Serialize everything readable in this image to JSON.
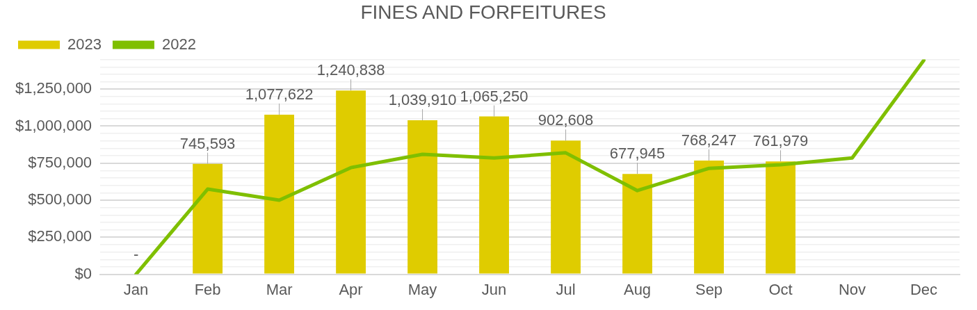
{
  "chart_data": {
    "type": "bar",
    "title": "FINES AND FORFEITURES",
    "categories": [
      "Jan",
      "Feb",
      "Mar",
      "Apr",
      "May",
      "Jun",
      "Jul",
      "Aug",
      "Sep",
      "Oct",
      "Nov",
      "Dec"
    ],
    "series": [
      {
        "name": "2023",
        "color": "#dfcc00",
        "values": [
          0,
          745593,
          1077622,
          1240838,
          1039910,
          1065250,
          902608,
          677945,
          768247,
          761979,
          null,
          null
        ],
        "value_labels": [
          "-",
          "745,593",
          "1,077,622",
          "1,240,838",
          "1,039,910",
          "1,065,250",
          "902,608",
          "677,945",
          "768,247",
          "761,979",
          null,
          null
        ]
      },
      {
        "name": "2022",
        "type": "line",
        "color": "#7fbf00",
        "values": [
          0,
          575000,
          500000,
          720000,
          810000,
          785000,
          820000,
          565000,
          715000,
          740000,
          785000,
          1445000
        ]
      }
    ],
    "ylim": [
      0,
      1450000
    ],
    "yticks": [
      {
        "value": 0,
        "label": "$0"
      },
      {
        "value": 50000,
        "label": null
      },
      {
        "value": 100000,
        "label": null
      },
      {
        "value": 150000,
        "label": null
      },
      {
        "value": 200000,
        "label": null
      },
      {
        "value": 250000,
        "label": "$250,000"
      },
      {
        "value": 300000,
        "label": null
      },
      {
        "value": 350000,
        "label": null
      },
      {
        "value": 400000,
        "label": null
      },
      {
        "value": 450000,
        "label": null
      },
      {
        "value": 500000,
        "label": "$500,000"
      },
      {
        "value": 550000,
        "label": null
      },
      {
        "value": 600000,
        "label": null
      },
      {
        "value": 650000,
        "label": null
      },
      {
        "value": 700000,
        "label": null
      },
      {
        "value": 750000,
        "label": "$750,000"
      },
      {
        "value": 800000,
        "label": null
      },
      {
        "value": 850000,
        "label": null
      },
      {
        "value": 900000,
        "label": null
      },
      {
        "value": 950000,
        "label": null
      },
      {
        "value": 1000000,
        "label": "$1,000,000"
      },
      {
        "value": 1050000,
        "label": null
      },
      {
        "value": 1100000,
        "label": null
      },
      {
        "value": 1150000,
        "label": null
      },
      {
        "value": 1200000,
        "label": null
      },
      {
        "value": 1250000,
        "label": "$1,250,000"
      },
      {
        "value": 1300000,
        "label": null
      },
      {
        "value": 1350000,
        "label": null
      },
      {
        "value": 1400000,
        "label": null
      },
      {
        "value": 1450000,
        "label": null
      }
    ],
    "grid": "y",
    "legend": "top left",
    "line_style": "solid",
    "marker": "none"
  }
}
